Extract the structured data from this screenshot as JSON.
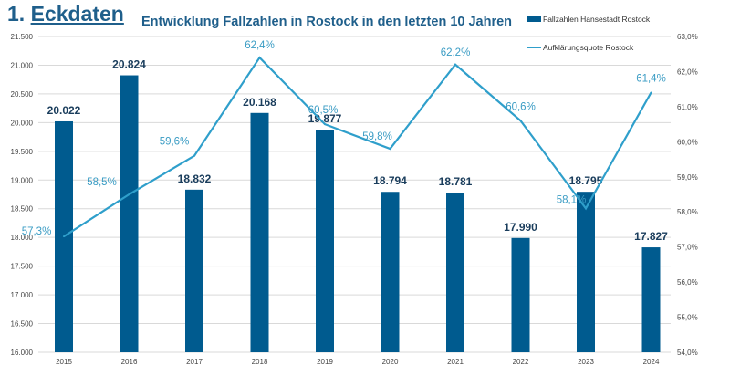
{
  "heading": {
    "number": "1.",
    "title": "Eckdaten"
  },
  "colors": {
    "bar": "#005b8f",
    "line": "#2f9fcb",
    "title": "#1f5f8b",
    "grid": "#d9d9d9"
  },
  "chart_data": {
    "type": "bar+line",
    "title": "Entwicklung Fallzahlen in Rostock in den letzten 10 Jahren",
    "categories": [
      "2015",
      "2016",
      "2017",
      "2018",
      "2019",
      "2020",
      "2021",
      "2022",
      "2023",
      "2024"
    ],
    "series": [
      {
        "name": "Fallzahlen Hansestadt Rostock",
        "type": "bar",
        "axis": "left",
        "values": [
          20022,
          20824,
          18832,
          20168,
          19877,
          18794,
          18781,
          17990,
          18795,
          17827
        ],
        "labels": [
          "20.022",
          "20.824",
          "18.832",
          "20.168",
          "19.877",
          "18.794",
          "18.781",
          "17.990",
          "18.795",
          "17.827"
        ]
      },
      {
        "name": "Aufklärungsquote Rostock",
        "type": "line",
        "axis": "right",
        "values": [
          57.3,
          58.5,
          59.6,
          62.4,
          60.5,
          59.8,
          62.2,
          60.6,
          58.1,
          61.4
        ],
        "labels": [
          "57,3%",
          "58,5%",
          "59,6%",
          "62,4%",
          "60,5%",
          "59,8%",
          "62,2%",
          "60,6%",
          "58,1%",
          "61,4%"
        ]
      }
    ],
    "y_left": {
      "range": [
        16000,
        21500
      ],
      "ticks": [
        "16.000",
        "16.500",
        "17.000",
        "17.500",
        "18.000",
        "18.500",
        "19.000",
        "19.500",
        "20.000",
        "20.500",
        "21.000",
        "21.500"
      ]
    },
    "y_right": {
      "range": [
        54,
        63
      ],
      "ticks": [
        "54,0%",
        "55,0%",
        "56,0%",
        "57,0%",
        "58,0%",
        "59,0%",
        "60,0%",
        "61,0%",
        "62,0%",
        "63,0%"
      ]
    },
    "grid": true,
    "legend": "top-right"
  }
}
